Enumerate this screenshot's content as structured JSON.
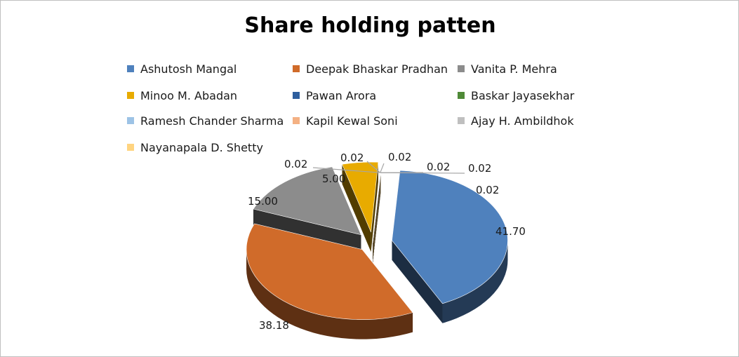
{
  "chart_data": {
    "type": "pie",
    "title": "Share holding patten",
    "legend_position": "top",
    "three_d": true,
    "exploded": true,
    "slices": [
      {
        "label": "Ashutosh Mangal",
        "value": 41.7,
        "display": "41.70",
        "color": "#4f81bd"
      },
      {
        "label": "Deepak Bhaskar Pradhan",
        "value": 38.18,
        "display": "38.18",
        "color": "#d06b2a"
      },
      {
        "label": "Vanita P. Mehra",
        "value": 15.0,
        "display": "15.00",
        "color": "#8c8c8c"
      },
      {
        "label": "Minoo M. Abadan",
        "value": 5.0,
        "display": "5.00",
        "color": "#e8ab00"
      },
      {
        "label": "Pawan Arora",
        "value": 0.02,
        "display": "0.02",
        "color": "#2e5f9e"
      },
      {
        "label": "Baskar Jayasekhar",
        "value": 0.02,
        "display": "0.02",
        "color": "#4f8a37"
      },
      {
        "label": "Ramesh Chander Sharma",
        "value": 0.02,
        "display": "0.02",
        "color": "#9dc3e6"
      },
      {
        "label": "Kapil Kewal Soni",
        "value": 0.02,
        "display": "0.02",
        "color": "#f4b183"
      },
      {
        "label": "Ajay H. Ambildhok",
        "value": 0.02,
        "display": "0.02",
        "color": "#bfbfbf"
      },
      {
        "label": "Nayanapala D. Shetty",
        "value": 0.02,
        "display": "0.02",
        "color": "#ffd480"
      }
    ]
  }
}
